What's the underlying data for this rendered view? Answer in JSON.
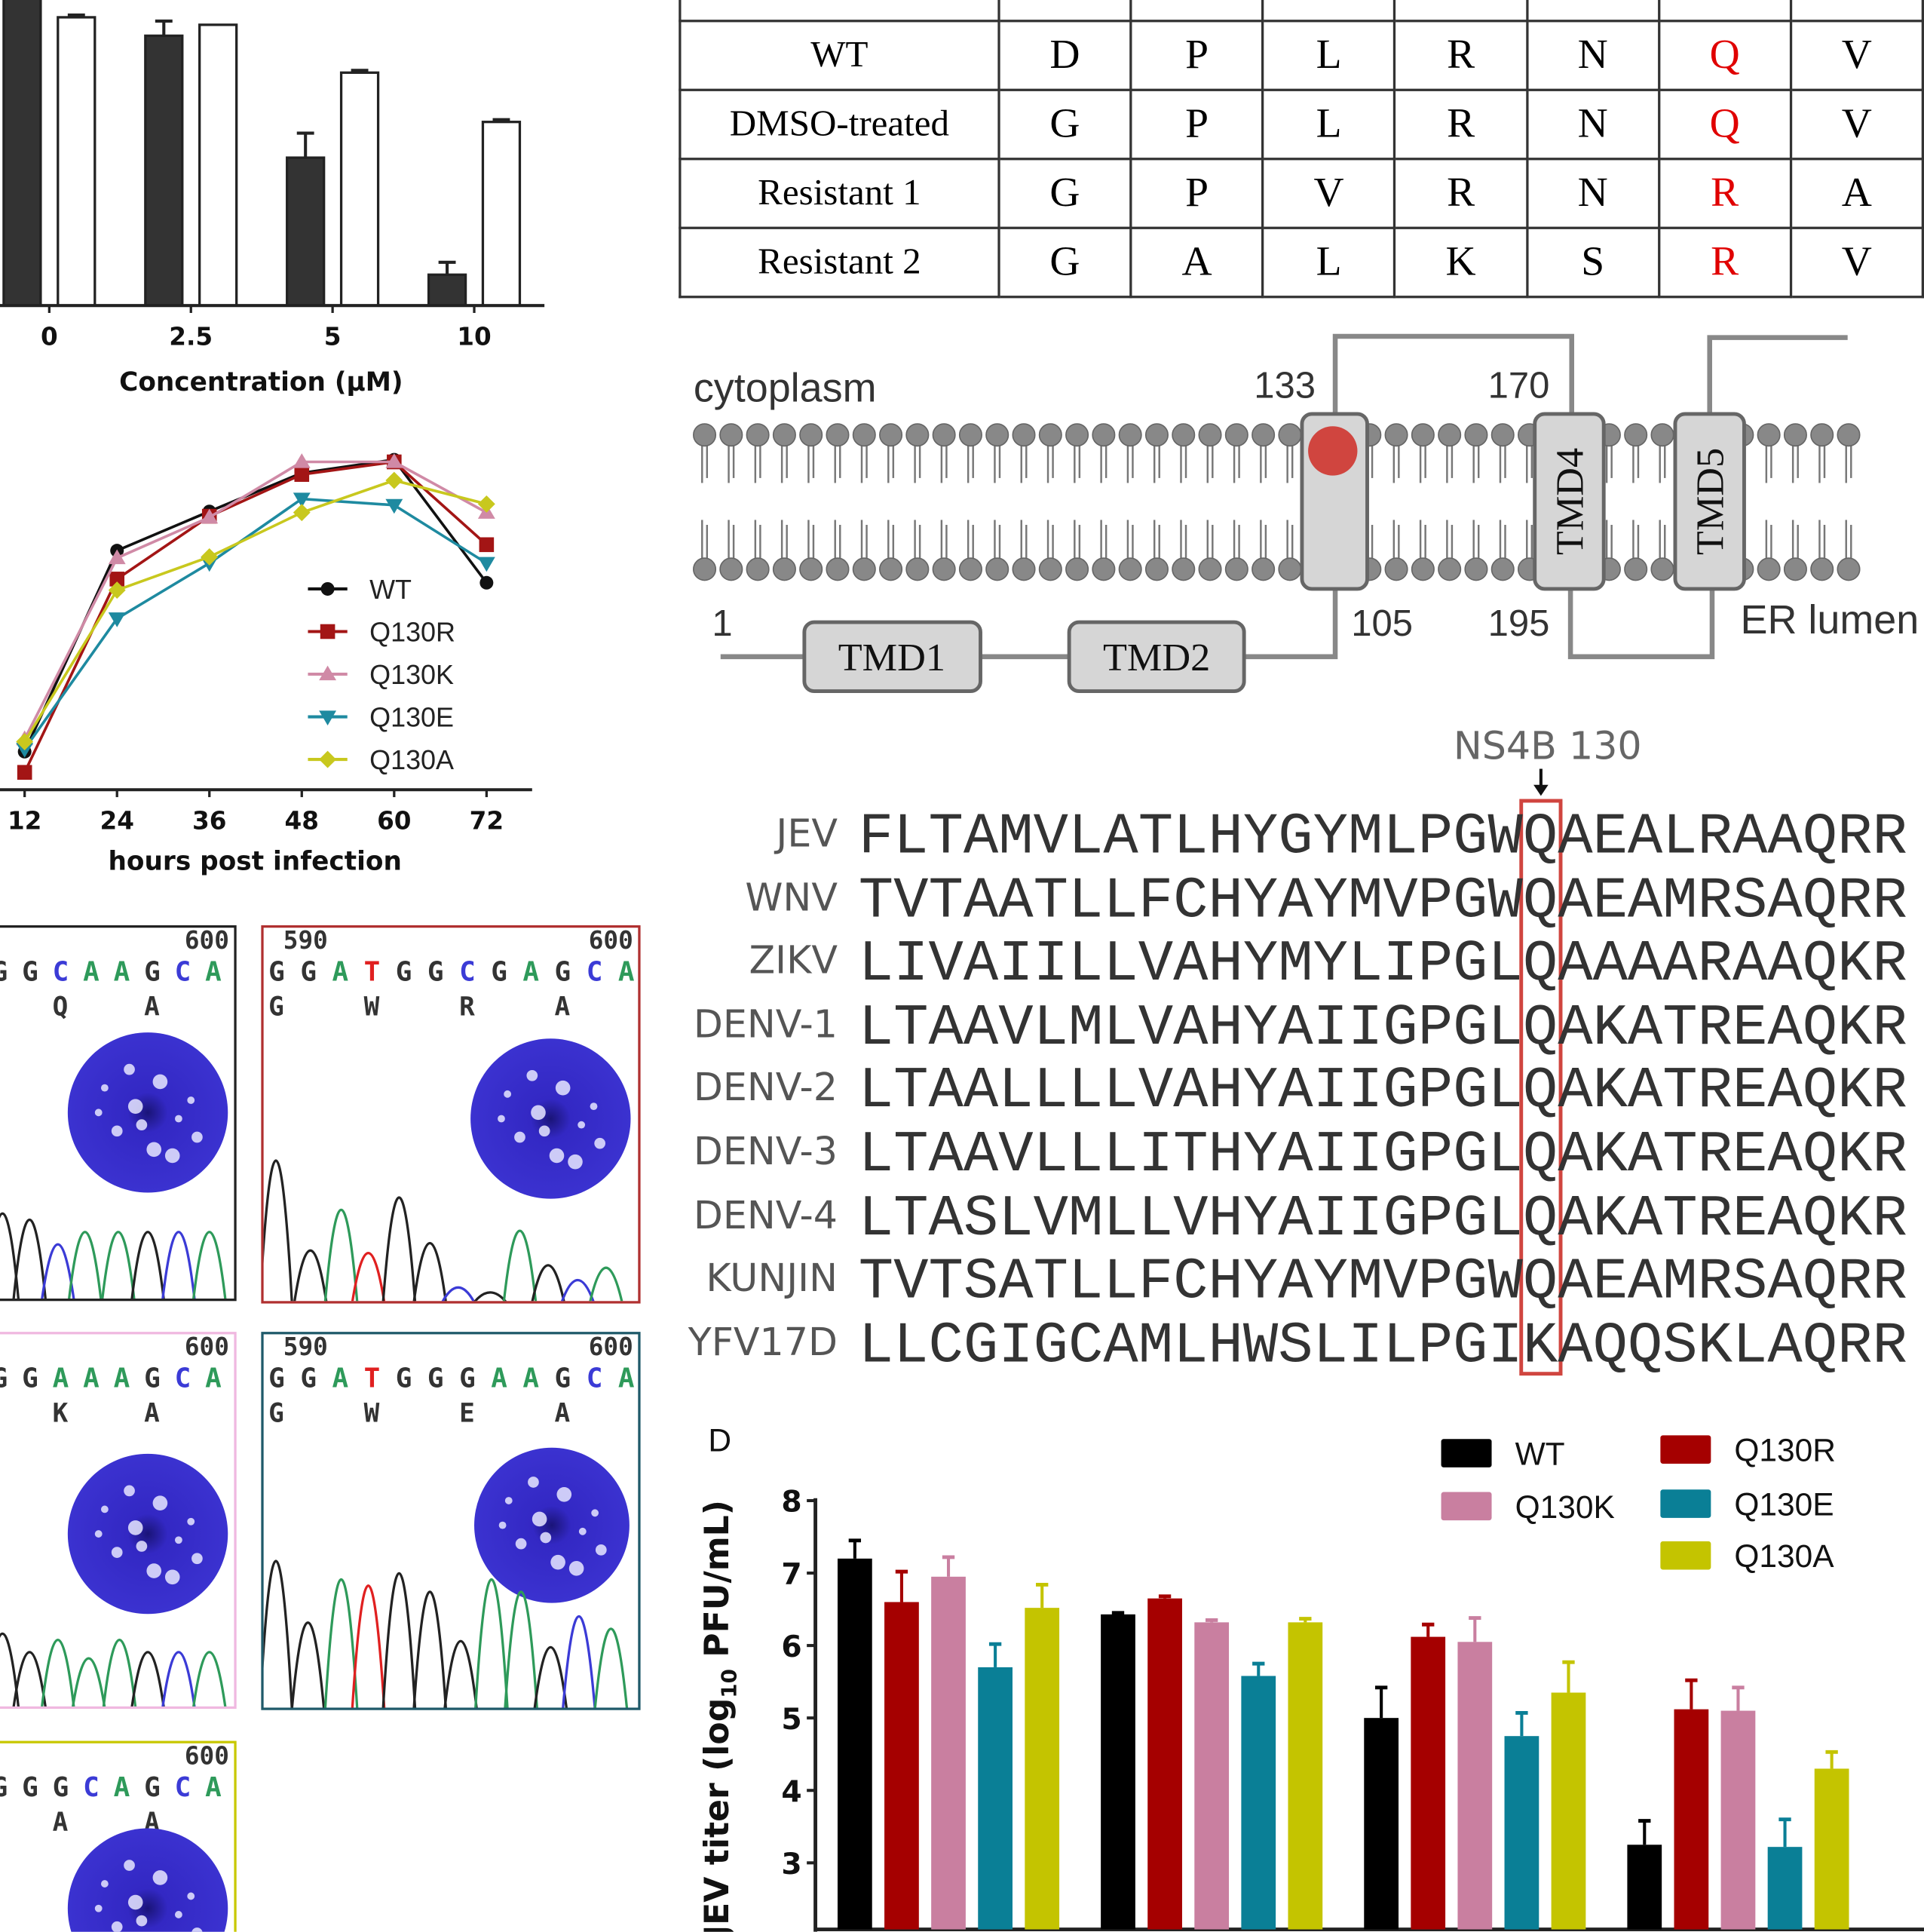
{
  "chart_data": [
    {
      "id": "panel_a",
      "type": "bar",
      "categories": [
        "0",
        "2.5",
        "5",
        "10"
      ],
      "xlabel": "Concentration (μM)",
      "ylabel": "",
      "ylim": [
        0,
        106
      ],
      "series": [
        {
          "name": "filled",
          "color": "#333333",
          "values": [
            110,
            93.6,
            51.3,
            10.7
          ],
          "errors": [
            0,
            5.1,
            8.5,
            4.3
          ]
        },
        {
          "name": "open",
          "color": "#ffffff",
          "values": [
            100,
            97.4,
            80.8,
            63.7
          ],
          "errors": [
            0.8,
            0,
            0.8,
            0.8
          ]
        }
      ]
    },
    {
      "id": "panel_b",
      "type": "line",
      "x": [
        12,
        24,
        36,
        48,
        60,
        72
      ],
      "xlabel": "hours post infection",
      "ylabel": "",
      "ylim": [
        0,
        10
      ],
      "legend": "center-right",
      "series": [
        {
          "name": "WT",
          "color": "#111111",
          "marker": "circle",
          "values": [
            1.03,
            6.47,
            7.53,
            8.57,
            8.93,
            5.6
          ]
        },
        {
          "name": "Q130R",
          "color": "#a31515",
          "marker": "square",
          "values": [
            0.47,
            5.7,
            7.4,
            8.53,
            8.87,
            6.63
          ]
        },
        {
          "name": "Q130K",
          "color": "#d08aa6",
          "marker": "triangle-up",
          "values": [
            1.37,
            6.27,
            7.37,
            8.87,
            8.87,
            7.5
          ]
        },
        {
          "name": "Q130E",
          "color": "#1e8aa0",
          "marker": "triangle-down",
          "values": [
            1.1,
            4.63,
            6.13,
            7.87,
            7.7,
            6.13
          ]
        },
        {
          "name": "Q130A",
          "color": "#c8c81e",
          "marker": "diamond",
          "values": [
            1.3,
            5.4,
            6.3,
            7.5,
            8.37,
            7.73
          ]
        }
      ]
    },
    {
      "id": "panel_d",
      "type": "bar",
      "panel_label": "D",
      "ylabel_main": "JEV titer (log",
      "ylabel_sub": "10",
      "ylabel_end": " PFU/mL)",
      "yticks": [
        "8",
        "7",
        "6",
        "5",
        "4",
        "3"
      ],
      "ylim": [
        2.05,
        8
      ],
      "groups": 4,
      "series": [
        {
          "name": "WT",
          "color": "#000000",
          "values": [
            7.2,
            6.43,
            5.0,
            3.25
          ],
          "errors": [
            0.25,
            0.02,
            0.42,
            0.33
          ]
        },
        {
          "name": "Q130R",
          "color": "#a50000",
          "values": [
            6.6,
            6.65,
            6.12,
            5.12
          ],
          "errors": [
            0.42,
            0.03,
            0.17,
            0.4
          ]
        },
        {
          "name": "Q130K",
          "color": "#c97fa0",
          "values": [
            6.95,
            6.32,
            6.05,
            5.1
          ],
          "errors": [
            0.27,
            0.03,
            0.33,
            0.32
          ]
        },
        {
          "name": "Q130E",
          "color": "#0a7f96",
          "values": [
            5.7,
            5.58,
            4.75,
            3.22
          ],
          "errors": [
            0.32,
            0.17,
            0.32,
            0.38
          ]
        },
        {
          "name": "Q130A",
          "color": "#c4c400",
          "values": [
            6.52,
            6.32,
            5.35,
            4.3
          ],
          "errors": [
            0.32,
            0.05,
            0.42,
            0.23
          ]
        }
      ]
    }
  ],
  "table": {
    "highlight_color": "#e00000",
    "highlight_column": 5,
    "rows": [
      {
        "label": "WT",
        "residues": [
          "D",
          "P",
          "L",
          "R",
          "N",
          "Q",
          "V"
        ]
      },
      {
        "label": "DMSO-treated",
        "residues": [
          "G",
          "P",
          "L",
          "R",
          "N",
          "Q",
          "V"
        ]
      },
      {
        "label": "Resistant 1",
        "residues": [
          "G",
          "P",
          "V",
          "R",
          "N",
          "R",
          "A"
        ]
      },
      {
        "label": "Resistant 2",
        "residues": [
          "G",
          "A",
          "L",
          "K",
          "S",
          "R",
          "V"
        ]
      }
    ]
  },
  "membrane": {
    "cytoplasm": "cytoplasm",
    "er_lumen": "ER lumen",
    "positions": [
      "133",
      "170",
      "1",
      "105",
      "195"
    ],
    "domains": [
      "TMD1",
      "TMD2",
      "TMD4",
      "TMD5"
    ],
    "mutation_color": "#d0453f"
  },
  "alignment": {
    "title": "NS4B 130",
    "highlight_color": "#d0453f",
    "rows": [
      {
        "name": "JEV",
        "seq": "FLTAMVLATLHYGYMLPGWQAEALRAAQRR"
      },
      {
        "name": "WNV",
        "seq": "TVTAATLLFCHYAYMVPGWQAEAMRSAQRR"
      },
      {
        "name": "ZIKV",
        "seq": "LIVAIILLVAHYMYLIPGLQAAAARAAQKR"
      },
      {
        "name": "DENV-1",
        "seq": "LTAAVLMLVAHYAIIGPGLQAKATREAQKR"
      },
      {
        "name": "DENV-2",
        "seq": "LTAALLLLVAHYAIIGPGLQAKATREAQKR"
      },
      {
        "name": "DENV-3",
        "seq": "LTAAVLLLITHYAIIGPGLQAKATREAQKR"
      },
      {
        "name": "DENV-4",
        "seq": "LTASLVMLLVHYAIIGPGLQAKATREAQKR"
      },
      {
        "name": "KUNJIN",
        "seq": "TVTSATLLFCHYAYMVPGWQAEAMRSAQRR"
      },
      {
        "name": "YFV17D",
        "seq": "LLCGIGCAMLHWSLILPGIKAQQSKLAQRR"
      }
    ]
  },
  "chromatograms": [
    {
      "name": "WT",
      "border": "#222222",
      "num_left": "",
      "num_right": "600",
      "bases": "GGCAAGCAG",
      "aa": "  Q  A  E"
    },
    {
      "name": "Q130R",
      "border": "#b03030",
      "num_left": "590",
      "num_right": "600",
      "bases": "GGATGGCGAGCAG",
      "aa": "G  W  R  A  E"
    },
    {
      "name": "Q130K",
      "border": "#f0b8e0",
      "num_left": "",
      "num_right": "600",
      "bases": "GGAAAGCA",
      "aa": "  K  A  "
    },
    {
      "name": "Q130E",
      "border": "#1f5a6a",
      "num_left": "590",
      "num_right": "600",
      "bases": "GGATGGGAAGCAG",
      "aa": "G  W  E  A"
    },
    {
      "name": "Q130A",
      "border": "#c8c800",
      "num_left": "",
      "num_right": "600",
      "bases": "GGGCAGCAG",
      "aa": "  A  A  E"
    }
  ],
  "base_colors": {
    "G": "#333333",
    "A": "#2e9a5a",
    "C": "#3b3bd6",
    "T": "#e02020"
  }
}
